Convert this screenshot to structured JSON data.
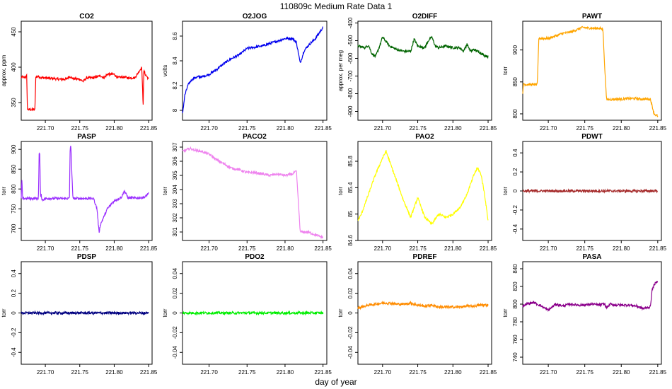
{
  "figure": {
    "title": "110809c   Medium Rate Data 1",
    "xlabel": "day of year"
  },
  "chart_data": [
    {
      "type": "line",
      "title": "CO2",
      "ylabel": "approx. ppm",
      "color": "#ff0000",
      "xlim": [
        221.665,
        221.855
      ],
      "ylim": [
        325,
        465
      ],
      "yticks": [
        350,
        400,
        450
      ],
      "x": [
        221.665,
        221.67,
        221.673,
        221.674,
        221.68,
        221.685,
        221.686,
        221.69,
        221.695,
        221.7,
        221.71,
        221.72,
        221.73,
        221.735,
        221.74,
        221.75,
        221.755,
        221.76,
        221.77,
        221.78,
        221.785,
        221.79,
        221.8,
        221.805,
        221.81,
        221.815,
        221.82,
        221.83,
        221.84,
        221.842,
        221.843,
        221.845,
        221.848,
        221.85
      ],
      "y": [
        386,
        385,
        388,
        340,
        340,
        340,
        386,
        387,
        385,
        385,
        384,
        383,
        383,
        387,
        384,
        383,
        380,
        385,
        385,
        388,
        385,
        390,
        390,
        385,
        386,
        386,
        385,
        385,
        400,
        345,
        395,
        390,
        386,
        383
      ]
    },
    {
      "type": "line",
      "title": "O2JOG",
      "ylabel": "volts",
      "color": "#0000ee",
      "xlim": [
        221.665,
        221.855
      ],
      "ylim": [
        7.92,
        8.72
      ],
      "yticks": [
        8.0,
        8.2,
        8.4,
        8.6
      ],
      "x": [
        221.665,
        221.668,
        221.672,
        221.676,
        221.68,
        221.685,
        221.69,
        221.7,
        221.71,
        221.72,
        221.73,
        221.74,
        221.75,
        221.76,
        221.77,
        221.78,
        221.79,
        221.8,
        221.81,
        221.815,
        221.82,
        221.825,
        221.83,
        221.84,
        221.85
      ],
      "y": [
        7.97,
        8.12,
        8.2,
        8.24,
        8.26,
        8.27,
        8.27,
        8.29,
        8.33,
        8.38,
        8.42,
        8.45,
        8.5,
        8.51,
        8.52,
        8.54,
        8.56,
        8.58,
        8.58,
        8.55,
        8.38,
        8.48,
        8.52,
        8.58,
        8.67
      ]
    },
    {
      "type": "line",
      "title": "O2DIFF",
      "ylabel": "approx. per meg",
      "color": "#006400",
      "xlim": [
        221.665,
        221.855
      ],
      "ylim": [
        -950,
        -390
      ],
      "yticks": [
        -900,
        -800,
        -700,
        -600,
        -500,
        -400
      ],
      "x": [
        221.665,
        221.67,
        221.675,
        221.68,
        221.685,
        221.69,
        221.695,
        221.7,
        221.71,
        221.72,
        221.73,
        221.74,
        221.745,
        221.75,
        221.76,
        221.765,
        221.77,
        221.775,
        221.78,
        221.79,
        221.8,
        221.81,
        221.815,
        221.82,
        221.825,
        221.83,
        221.84,
        221.845,
        221.85
      ],
      "y": [
        -530,
        -535,
        -540,
        -525,
        -575,
        -590,
        -540,
        -480,
        -530,
        -550,
        -560,
        -560,
        -490,
        -530,
        -540,
        -500,
        -480,
        -530,
        -540,
        -530,
        -540,
        -540,
        -560,
        -520,
        -560,
        -550,
        -570,
        -585,
        -590
      ]
    },
    {
      "type": "line",
      "title": "PAWT",
      "ylabel": "torr",
      "color": "#ffa500",
      "xlim": [
        221.665,
        221.855
      ],
      "ylim": [
        790,
        945
      ],
      "yticks": [
        800,
        850,
        900
      ],
      "x": [
        221.665,
        221.666,
        221.668,
        221.675,
        221.678,
        221.685,
        221.687,
        221.7,
        221.71,
        221.72,
        221.73,
        221.735,
        221.74,
        221.745,
        221.75,
        221.76,
        221.77,
        221.775,
        221.777,
        221.78,
        221.79,
        221.8,
        221.81,
        221.82,
        221.83,
        221.84,
        221.845,
        221.85
      ],
      "y": [
        830,
        848,
        846,
        846,
        846,
        846,
        918,
        918,
        922,
        926,
        928,
        930,
        932,
        935,
        935,
        934,
        934,
        932,
        878,
        822,
        823,
        823,
        824,
        824,
        823,
        823,
        800,
        796
      ]
    },
    {
      "type": "line",
      "title": "PASP",
      "ylabel": "torr",
      "color": "#9b30ff",
      "xlim": [
        221.665,
        221.855
      ],
      "ylim": [
        670,
        920
      ],
      "yticks": [
        700,
        750,
        800,
        850,
        900
      ],
      "x": [
        221.665,
        221.666,
        221.667,
        221.668,
        221.69,
        221.691,
        221.692,
        221.693,
        221.694,
        221.695,
        221.7,
        221.705,
        221.71,
        221.73,
        221.735,
        221.736,
        221.737,
        221.74,
        221.75,
        221.76,
        221.77,
        221.775,
        221.778,
        221.78,
        221.79,
        221.8,
        221.81,
        221.815,
        221.82,
        221.83,
        221.84,
        221.845,
        221.85
      ],
      "y": [
        775,
        826,
        775,
        776,
        776,
        890,
        885,
        778,
        790,
        772,
        776,
        776,
        776,
        776,
        776,
        905,
        910,
        776,
        776,
        776,
        776,
        750,
        690,
        710,
        750,
        770,
        778,
        795,
        778,
        777,
        778,
        780,
        790
      ]
    },
    {
      "type": "line",
      "title": "PACO2",
      "ylabel": "torr",
      "color": "#ee82ee",
      "xlim": [
        221.665,
        221.855
      ],
      "ylim": [
        300.4,
        307.4
      ],
      "yticks": [
        301,
        302,
        303,
        304,
        305,
        306,
        307
      ],
      "x": [
        221.665,
        221.67,
        221.675,
        221.68,
        221.69,
        221.7,
        221.71,
        221.72,
        221.73,
        221.74,
        221.75,
        221.76,
        221.77,
        221.78,
        221.79,
        221.8,
        221.81,
        221.815,
        221.82,
        221.825,
        221.83,
        221.84,
        221.85
      ],
      "y": [
        306.7,
        306.8,
        306.9,
        306.8,
        306.7,
        306.5,
        306.1,
        305.8,
        305.5,
        305.4,
        305.2,
        305.2,
        305.1,
        305.0,
        305.1,
        305.0,
        305.1,
        305.3,
        301.0,
        301.0,
        301.0,
        300.8,
        300.6
      ]
    },
    {
      "type": "line",
      "title": "PAO2",
      "ylabel": "torr",
      "color": "#ffff00",
      "xlim": [
        221.665,
        221.855
      ],
      "ylim": [
        84.6,
        86.1
      ],
      "yticks": [
        84.6,
        85.0,
        85.4,
        85.8
      ],
      "x": [
        221.665,
        221.67,
        221.68,
        221.69,
        221.7,
        221.705,
        221.71,
        221.72,
        221.73,
        221.74,
        221.75,
        221.76,
        221.77,
        221.78,
        221.79,
        221.8,
        221.81,
        221.82,
        221.83,
        221.835,
        221.84,
        221.845,
        221.85
      ],
      "y": [
        84.9,
        85.0,
        85.3,
        85.6,
        85.85,
        85.95,
        85.8,
        85.5,
        85.2,
        84.95,
        85.25,
        84.95,
        84.85,
        85.0,
        84.95,
        85.0,
        85.1,
        85.3,
        85.6,
        85.7,
        85.6,
        85.3,
        84.9
      ]
    },
    {
      "type": "line",
      "title": "PDWT",
      "ylabel": "torr",
      "color": "#a52a2a",
      "xlim": [
        221.665,
        221.855
      ],
      "ylim": [
        -0.52,
        0.52
      ],
      "yticks": [
        -0.4,
        -0.2,
        0.0,
        0.2,
        0.4
      ],
      "x": [
        221.665,
        221.85
      ],
      "y": [
        0.0,
        0.0
      ]
    },
    {
      "type": "line",
      "title": "PDSP",
      "ylabel": "torr",
      "color": "#000080",
      "xlim": [
        221.665,
        221.855
      ],
      "ylim": [
        -0.52,
        0.52
      ],
      "yticks": [
        -0.4,
        -0.2,
        0.0,
        0.2,
        0.4
      ],
      "x": [
        221.665,
        221.85
      ],
      "y": [
        0.0,
        0.0
      ]
    },
    {
      "type": "line",
      "title": "PDO2",
      "ylabel": "torr",
      "color": "#00ee00",
      "xlim": [
        221.665,
        221.855
      ],
      "ylim": [
        -0.052,
        0.052
      ],
      "yticks": [
        -0.04,
        -0.02,
        0.0,
        0.02,
        0.04
      ],
      "x": [
        221.665,
        221.85
      ],
      "y": [
        0.0,
        0.0
      ]
    },
    {
      "type": "line",
      "title": "PDREF",
      "ylabel": "torr",
      "color": "#ff8c00",
      "xlim": [
        221.665,
        221.855
      ],
      "ylim": [
        -0.052,
        0.052
      ],
      "yticks": [
        -0.04,
        -0.02,
        0.0,
        0.02,
        0.04
      ],
      "x": [
        221.665,
        221.67,
        221.68,
        221.69,
        221.7,
        221.71,
        221.72,
        221.73,
        221.74,
        221.75,
        221.76,
        221.77,
        221.78,
        221.79,
        221.8,
        221.81,
        221.82,
        221.83,
        221.84,
        221.85
      ],
      "y": [
        0.005,
        0.006,
        0.008,
        0.009,
        0.01,
        0.01,
        0.009,
        0.009,
        0.01,
        0.008,
        0.007,
        0.008,
        0.006,
        0.006,
        0.006,
        0.006,
        0.007,
        0.007,
        0.008,
        0.008
      ]
    },
    {
      "type": "line",
      "title": "PASA",
      "ylabel": "torr",
      "color": "#8b008b",
      "xlim": [
        221.665,
        221.855
      ],
      "ylim": [
        732,
        848
      ],
      "yticks": [
        740,
        760,
        780,
        800,
        820,
        840
      ],
      "x": [
        221.665,
        221.67,
        221.68,
        221.69,
        221.7,
        221.71,
        221.72,
        221.73,
        221.74,
        221.75,
        221.76,
        221.77,
        221.775,
        221.777,
        221.78,
        221.785,
        221.79,
        221.8,
        221.81,
        221.82,
        221.83,
        221.84,
        221.842,
        221.845,
        221.85
      ],
      "y": [
        798,
        800,
        802,
        798,
        793,
        800,
        798,
        800,
        799,
        799,
        800,
        799,
        800,
        800,
        796,
        800,
        799,
        799,
        799,
        798,
        795,
        797,
        815,
        822,
        826
      ]
    }
  ]
}
